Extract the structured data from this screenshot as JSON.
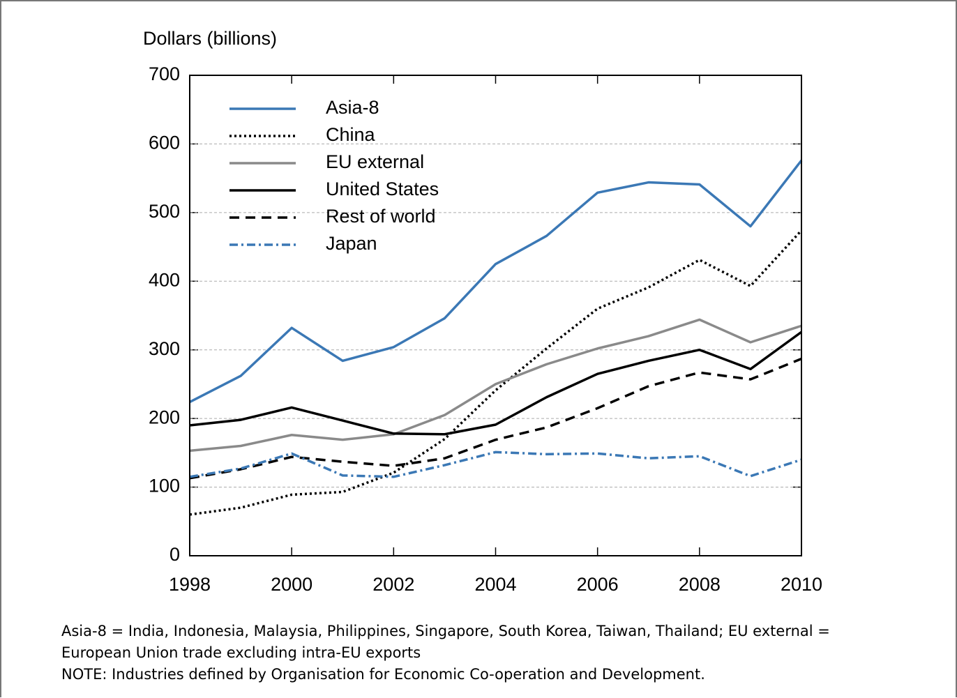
{
  "chart_data": {
    "type": "line",
    "y_label": "Dollars (billions)",
    "x": [
      1998,
      1999,
      2000,
      2001,
      2002,
      2003,
      2004,
      2005,
      2006,
      2007,
      2008,
      2009,
      2010
    ],
    "series": [
      {
        "name": "Asia-8",
        "color": "#3b78b5",
        "style": "solid",
        "values": [
          224,
          262,
          332,
          284,
          304,
          346,
          425,
          466,
          529,
          544,
          541,
          480,
          576
        ]
      },
      {
        "name": "China",
        "color": "#000000",
        "style": "dotted",
        "values": [
          60,
          70,
          89,
          93,
          121,
          170,
          241,
          302,
          360,
          391,
          431,
          393,
          474
        ]
      },
      {
        "name": "EU external",
        "color": "#8a8a8a",
        "style": "solid",
        "values": [
          153,
          160,
          176,
          169,
          177,
          205,
          250,
          279,
          302,
          320,
          344,
          311,
          335
        ]
      },
      {
        "name": "United States",
        "color": "#000000",
        "style": "solid",
        "values": [
          190,
          198,
          216,
          197,
          178,
          177,
          191,
          231,
          265,
          284,
          300,
          272,
          326
        ]
      },
      {
        "name": "Rest of world",
        "color": "#000000",
        "style": "dashed",
        "values": [
          113,
          126,
          144,
          137,
          131,
          142,
          169,
          187,
          215,
          247,
          267,
          257,
          287
        ]
      },
      {
        "name": "Japan",
        "color": "#3b78b5",
        "style": "dashdot",
        "values": [
          115,
          127,
          149,
          117,
          115,
          132,
          151,
          148,
          149,
          142,
          145,
          116,
          140
        ]
      }
    ],
    "xlim": [
      1998,
      2010
    ],
    "xticks": [
      1998,
      2000,
      2002,
      2004,
      2006,
      2008,
      2010
    ],
    "ylim": [
      0,
      700
    ],
    "yticks": [
      0,
      100,
      200,
      300,
      400,
      500,
      600,
      700
    ],
    "grid": true,
    "legend": "upper left",
    "notes": [
      "Asia-8 = India, Indonesia, Malaysia, Philippines, Singapore, South Korea, Taiwan, Thailand; EU external =",
      "European Union trade excluding intra-EU exports",
      "NOTE: Industries defined by Organisation for Economic Co-operation and Development."
    ]
  }
}
